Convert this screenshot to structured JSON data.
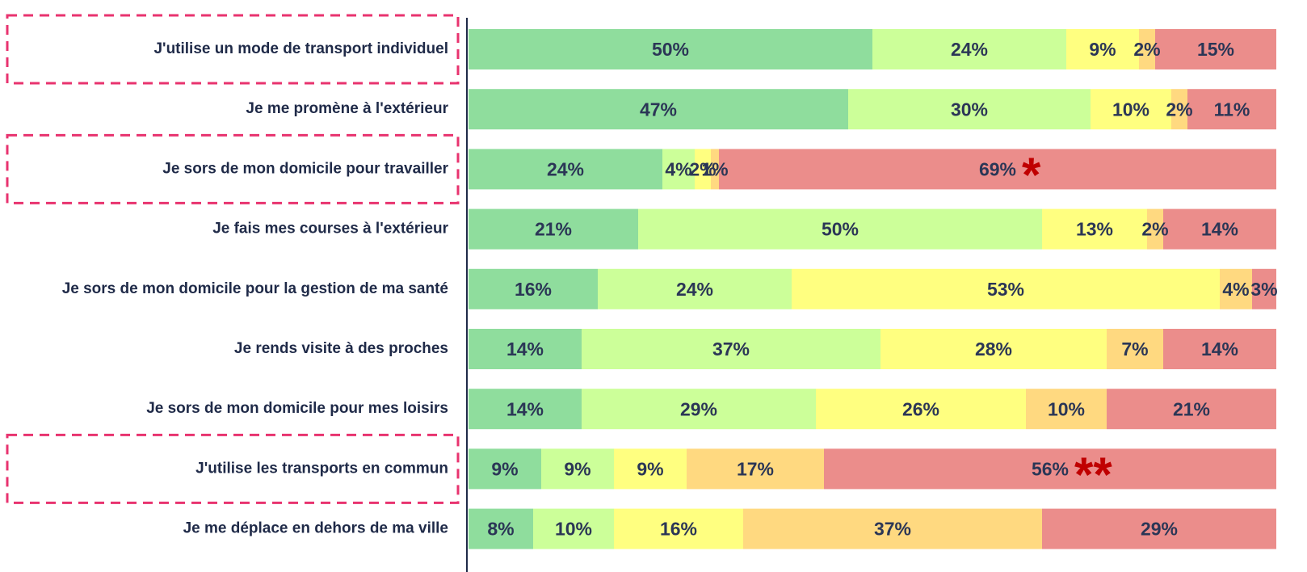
{
  "chart_data": {
    "type": "stacked-bar",
    "categories": [
      "J'utilise un mode de transport individuel",
      "Je me promène à l'extérieur",
      "Je sors de mon domicile pour travailler",
      "Je fais mes courses à l'extérieur",
      "Je sors de mon domicile pour la gestion de ma santé",
      "Je rends visite à des proches",
      "Je sors de mon domicile pour mes loisirs",
      "J'utilise les transports en commun",
      "Je me déplace en dehors de ma ville"
    ],
    "xlim": [
      0,
      100
    ],
    "highlight": [
      true,
      false,
      true,
      false,
      false,
      false,
      false,
      true,
      false
    ],
    "category_marks": [
      null,
      null,
      "*",
      null,
      null,
      null,
      null,
      "**",
      null
    ],
    "series": [
      {
        "color": "#8fdd9d",
        "values": [
          50,
          47,
          24,
          21,
          16,
          14,
          14,
          9,
          8
        ],
        "value_labels": [
          "50%",
          "47%",
          "24%",
          "21%",
          "16%",
          "14%",
          "14%",
          "9%",
          "8%"
        ]
      },
      {
        "color": "#ccff99",
        "values": [
          24,
          30,
          4,
          50,
          24,
          37,
          29,
          9,
          10
        ],
        "value_labels": [
          "24%",
          "30%",
          "4%",
          "50%",
          "24%",
          "37%",
          "29%",
          "9%",
          "10%"
        ]
      },
      {
        "color": "#ffff80",
        "values": [
          9,
          10,
          2,
          13,
          53,
          28,
          26,
          9,
          16
        ],
        "value_labels": [
          "9%",
          "10%",
          "2%",
          "13%",
          "53%",
          "28%",
          "26%",
          "9%",
          "16%"
        ]
      },
      {
        "color": "#ffd980",
        "values": [
          2,
          2,
          1,
          2,
          4,
          7,
          10,
          17,
          37
        ],
        "value_labels": [
          "2%",
          "2%",
          "1%",
          "2%",
          "4%",
          "7%",
          "10%",
          "17%",
          "37%"
        ]
      },
      {
        "color": "#eb8d8b",
        "values": [
          15,
          11,
          69,
          14,
          3,
          14,
          21,
          56,
          29
        ],
        "value_labels": [
          "15%",
          "11%",
          "69%",
          "14%",
          "3%",
          "14%",
          "21%",
          "56%",
          "29%"
        ]
      }
    ]
  }
}
